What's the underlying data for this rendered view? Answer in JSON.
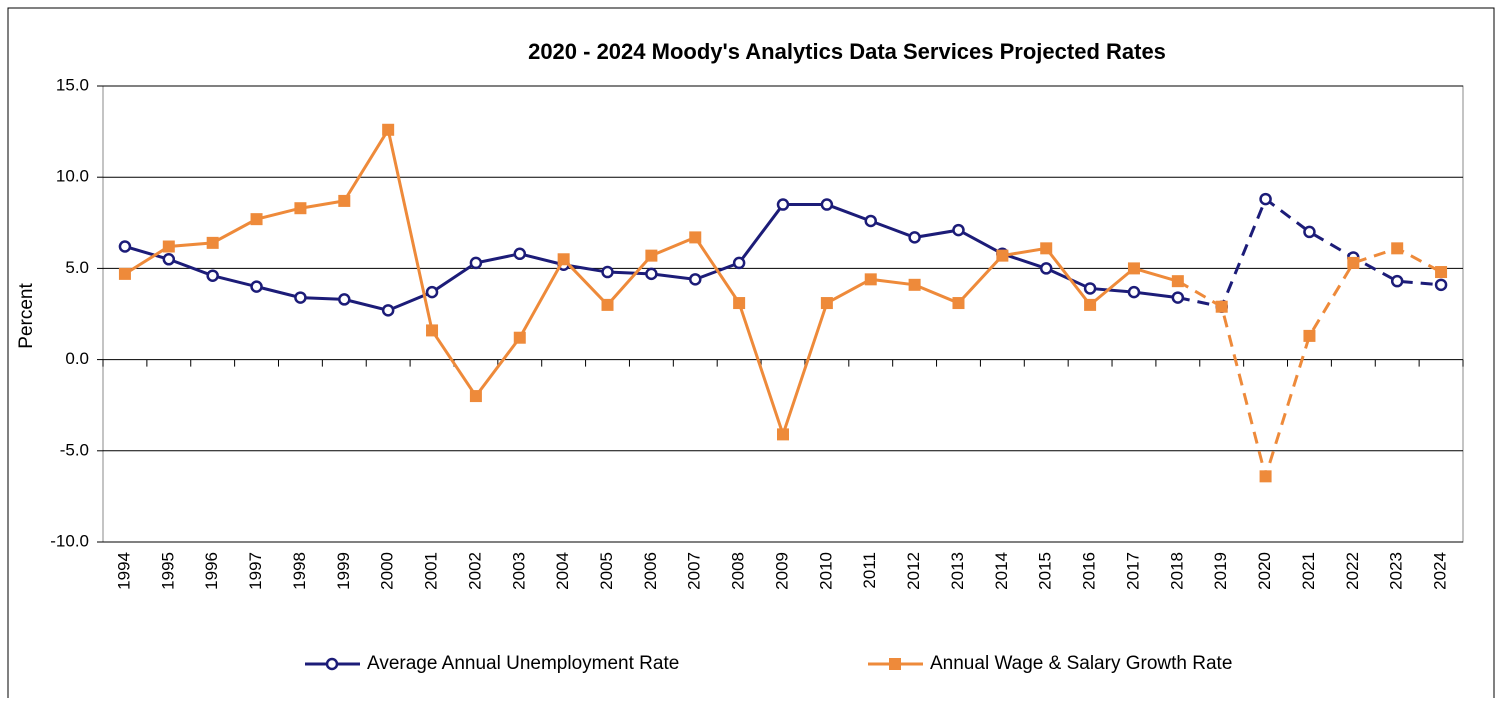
{
  "chart_data": {
    "type": "line",
    "title": "2020 - 2024 Moody's Analytics Data Services Projected Rates",
    "y_label": "Percent",
    "categories": [
      "1994",
      "1995",
      "1996",
      "1997",
      "1998",
      "1999",
      "2000",
      "2001",
      "2002",
      "2003",
      "2004",
      "2005",
      "2006",
      "2007",
      "2008",
      "2009",
      "2010",
      "2011",
      "2012",
      "2013",
      "2014",
      "2015",
      "2016",
      "2017",
      "2018",
      "2019",
      "2020",
      "2021",
      "2022",
      "2023",
      "2024"
    ],
    "projection_start": "2018",
    "series": [
      {
        "name": "Average Annual Unemployment Rate",
        "color": "#1c1c78",
        "marker": "circle",
        "values": [
          6.2,
          5.5,
          4.6,
          4.0,
          3.4,
          3.3,
          2.7,
          3.7,
          5.3,
          5.8,
          5.2,
          4.8,
          4.7,
          4.4,
          5.3,
          8.5,
          8.5,
          7.6,
          6.7,
          7.1,
          5.8,
          5.0,
          3.9,
          3.7,
          3.4,
          2.9,
          8.8,
          7.0,
          5.6,
          4.3,
          4.1
        ]
      },
      {
        "name": "Annual Wage & Salary Growth Rate",
        "color": "#ee8a3a",
        "marker": "square",
        "values": [
          4.7,
          6.2,
          6.4,
          7.7,
          8.3,
          8.7,
          12.6,
          1.6,
          -2.0,
          1.2,
          5.5,
          3.0,
          5.7,
          6.7,
          3.1,
          -4.1,
          3.1,
          4.4,
          4.1,
          3.1,
          5.7,
          6.1,
          3.0,
          5.0,
          4.3,
          2.9,
          -6.4,
          1.3,
          5.3,
          6.1,
          4.8
        ]
      }
    ],
    "ylim": [
      -10,
      15
    ],
    "yticks": [
      {
        "value": -10,
        "label": "-10.0"
      },
      {
        "value": -5,
        "label": "-5.0"
      },
      {
        "value": 0,
        "label": "0.0"
      },
      {
        "value": 5,
        "label": "5.0"
      },
      {
        "value": 10,
        "label": "10.0"
      },
      {
        "value": 15,
        "label": "15.0"
      }
    ],
    "grid": true,
    "legend": "bottom"
  }
}
